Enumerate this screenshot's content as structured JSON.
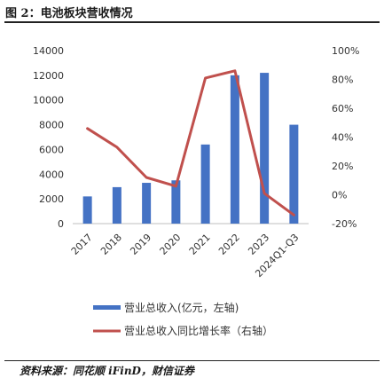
{
  "figure": {
    "title": "图 2：电池板块营收情况",
    "source": "资料来源：同花顺 iFinD，财信证券"
  },
  "chart_data": {
    "type": "bar",
    "categories": [
      "2017",
      "2018",
      "2019",
      "2020",
      "2021",
      "2022",
      "2023",
      "2024Q1-Q3"
    ],
    "series": [
      {
        "name": "营业总收入(亿元，左轴)",
        "type": "bar",
        "axis": "left",
        "color": "#4472C4",
        "values": [
          2200,
          2950,
          3300,
          3500,
          6400,
          12000,
          12200,
          8000
        ]
      },
      {
        "name": "营业总收入同比增长率（右轴）",
        "type": "line",
        "axis": "right",
        "color": "#C0504D",
        "values": [
          46,
          33,
          12,
          6,
          81,
          86,
          1,
          -14
        ]
      }
    ],
    "y_left": {
      "ylim": [
        0,
        14000
      ],
      "ticks": [
        "0",
        "2000",
        "4000",
        "6000",
        "8000",
        "10000",
        "12000",
        "14000"
      ]
    },
    "y_right": {
      "ylim": [
        -20,
        100
      ],
      "ticks": [
        "-20%",
        "0%",
        "20%",
        "40%",
        "60%",
        "80%",
        "100%"
      ]
    },
    "grid": false,
    "legend_position": "bottom"
  }
}
